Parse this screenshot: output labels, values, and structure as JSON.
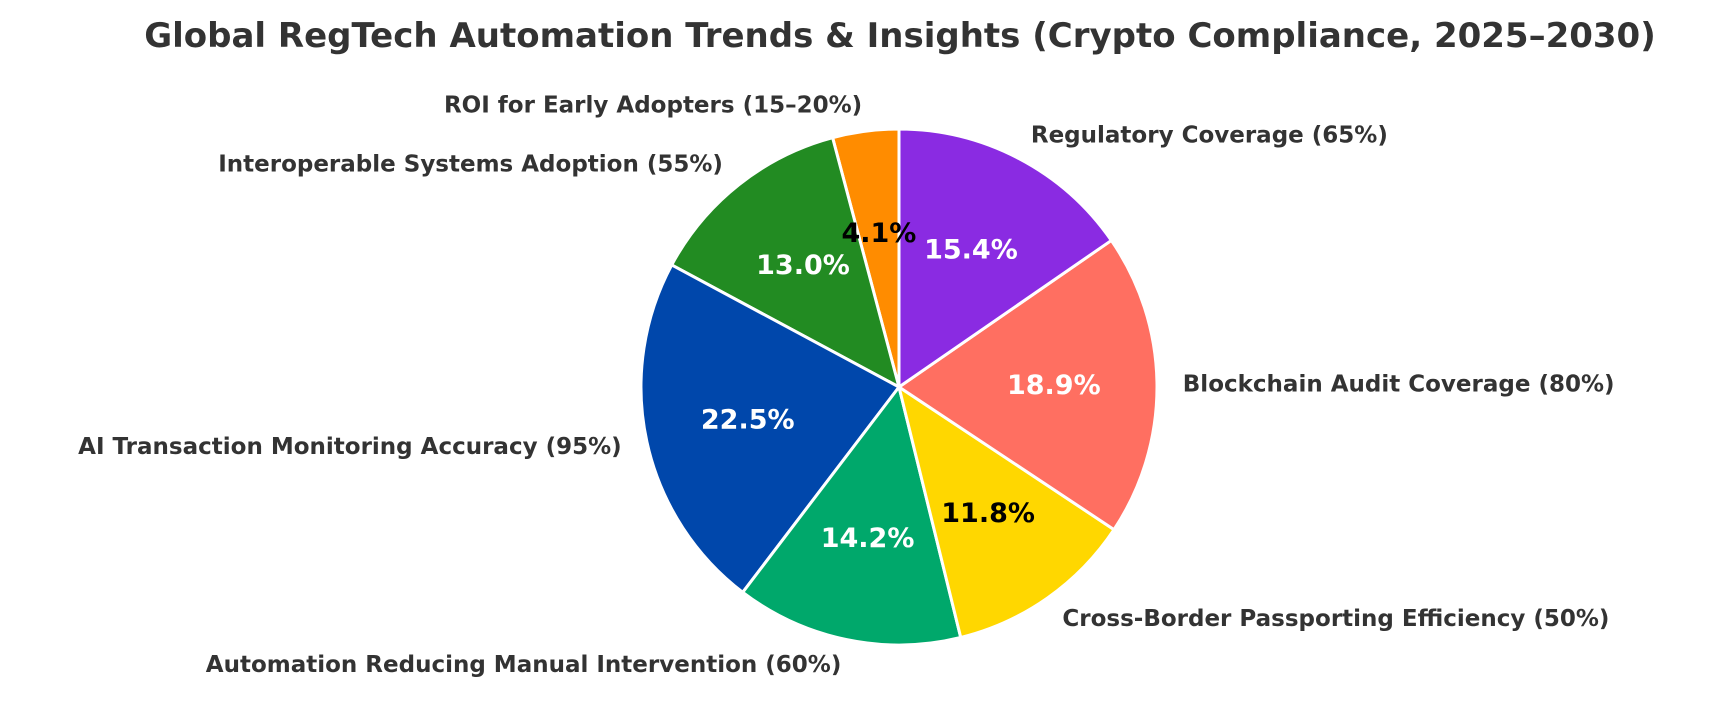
{
  "chart_data": {
    "type": "pie",
    "title": "Global RegTech Automation Trends & Insights (Crypto Compliance, 2025–2030)",
    "start_angle_deg": 90,
    "direction": "counterclockwise",
    "slice_edge_color": "#ffffff",
    "slices": [
      {
        "label": "ROI for Early Adopters (15–20%)",
        "value": 17.5,
        "percent_label": "4.1%",
        "color": "#ff8c00",
        "pct_text_color": "#000000"
      },
      {
        "label": "Interoperable Systems Adoption (55%)",
        "value": 55,
        "percent_label": "13.0%",
        "color": "#228b22",
        "pct_text_color": "#ffffff"
      },
      {
        "label": "AI Transaction Monitoring Accuracy (95%)",
        "value": 95,
        "percent_label": "22.5%",
        "color": "#0047ab",
        "pct_text_color": "#ffffff"
      },
      {
        "label": "Automation Reducing Manual Intervention (60%)",
        "value": 60,
        "percent_label": "14.2%",
        "color": "#00a86b",
        "pct_text_color": "#ffffff"
      },
      {
        "label": "Cross-Border Passporting Efficiency (50%)",
        "value": 50,
        "percent_label": "11.8%",
        "color": "#ffd700",
        "pct_text_color": "#000000"
      },
      {
        "label": "Blockchain Audit Coverage (80%)",
        "value": 80,
        "percent_label": "18.9%",
        "color": "#ff6f61",
        "pct_text_color": "#ffffff"
      },
      {
        "label": "Regulatory Coverage (65%)",
        "value": 65,
        "percent_label": "15.4%",
        "color": "#8a2be2",
        "pct_text_color": "#ffffff"
      }
    ]
  }
}
